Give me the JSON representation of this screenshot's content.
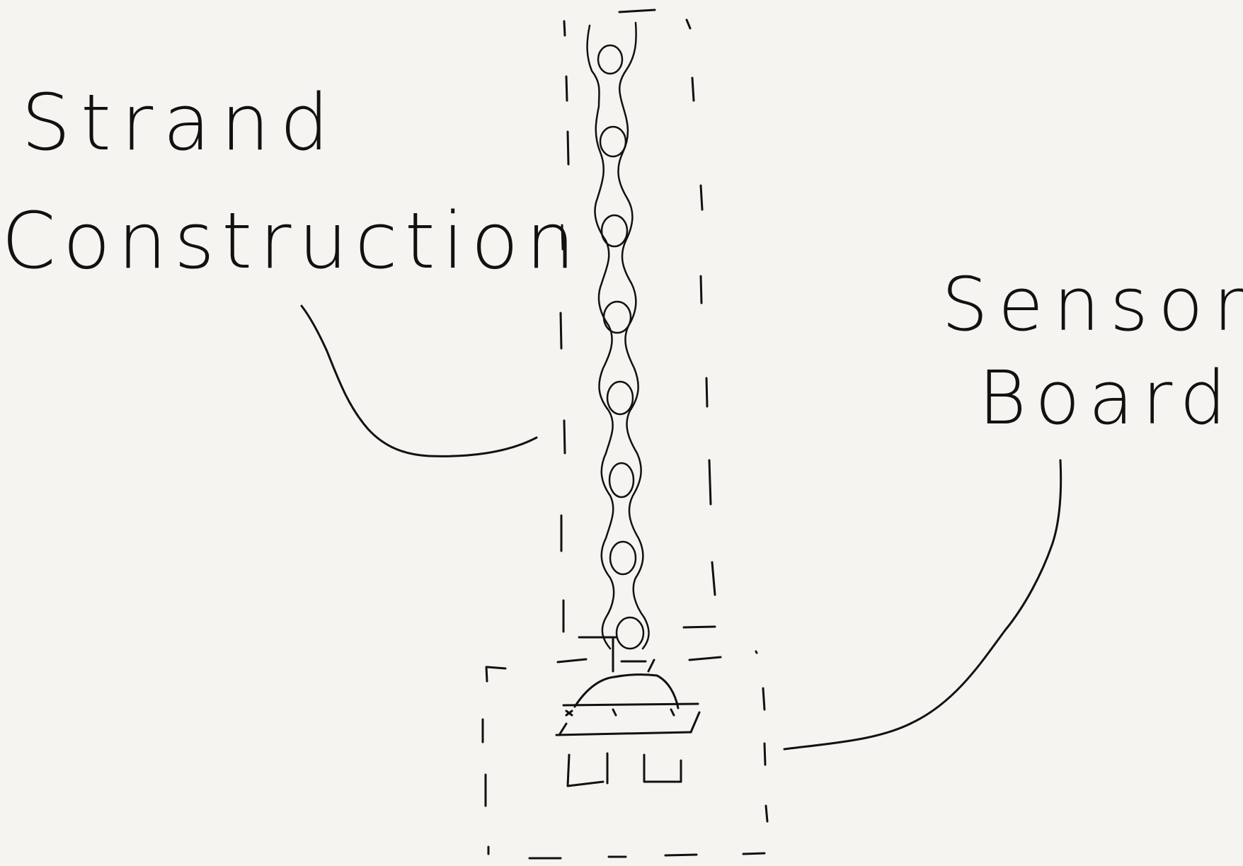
{
  "labels": {
    "strand": "Strand",
    "construction": "Construction",
    "sensor": "Sensor",
    "board": "Board"
  },
  "colors": {
    "background": "#f5f4f0",
    "ink": "#111111"
  }
}
